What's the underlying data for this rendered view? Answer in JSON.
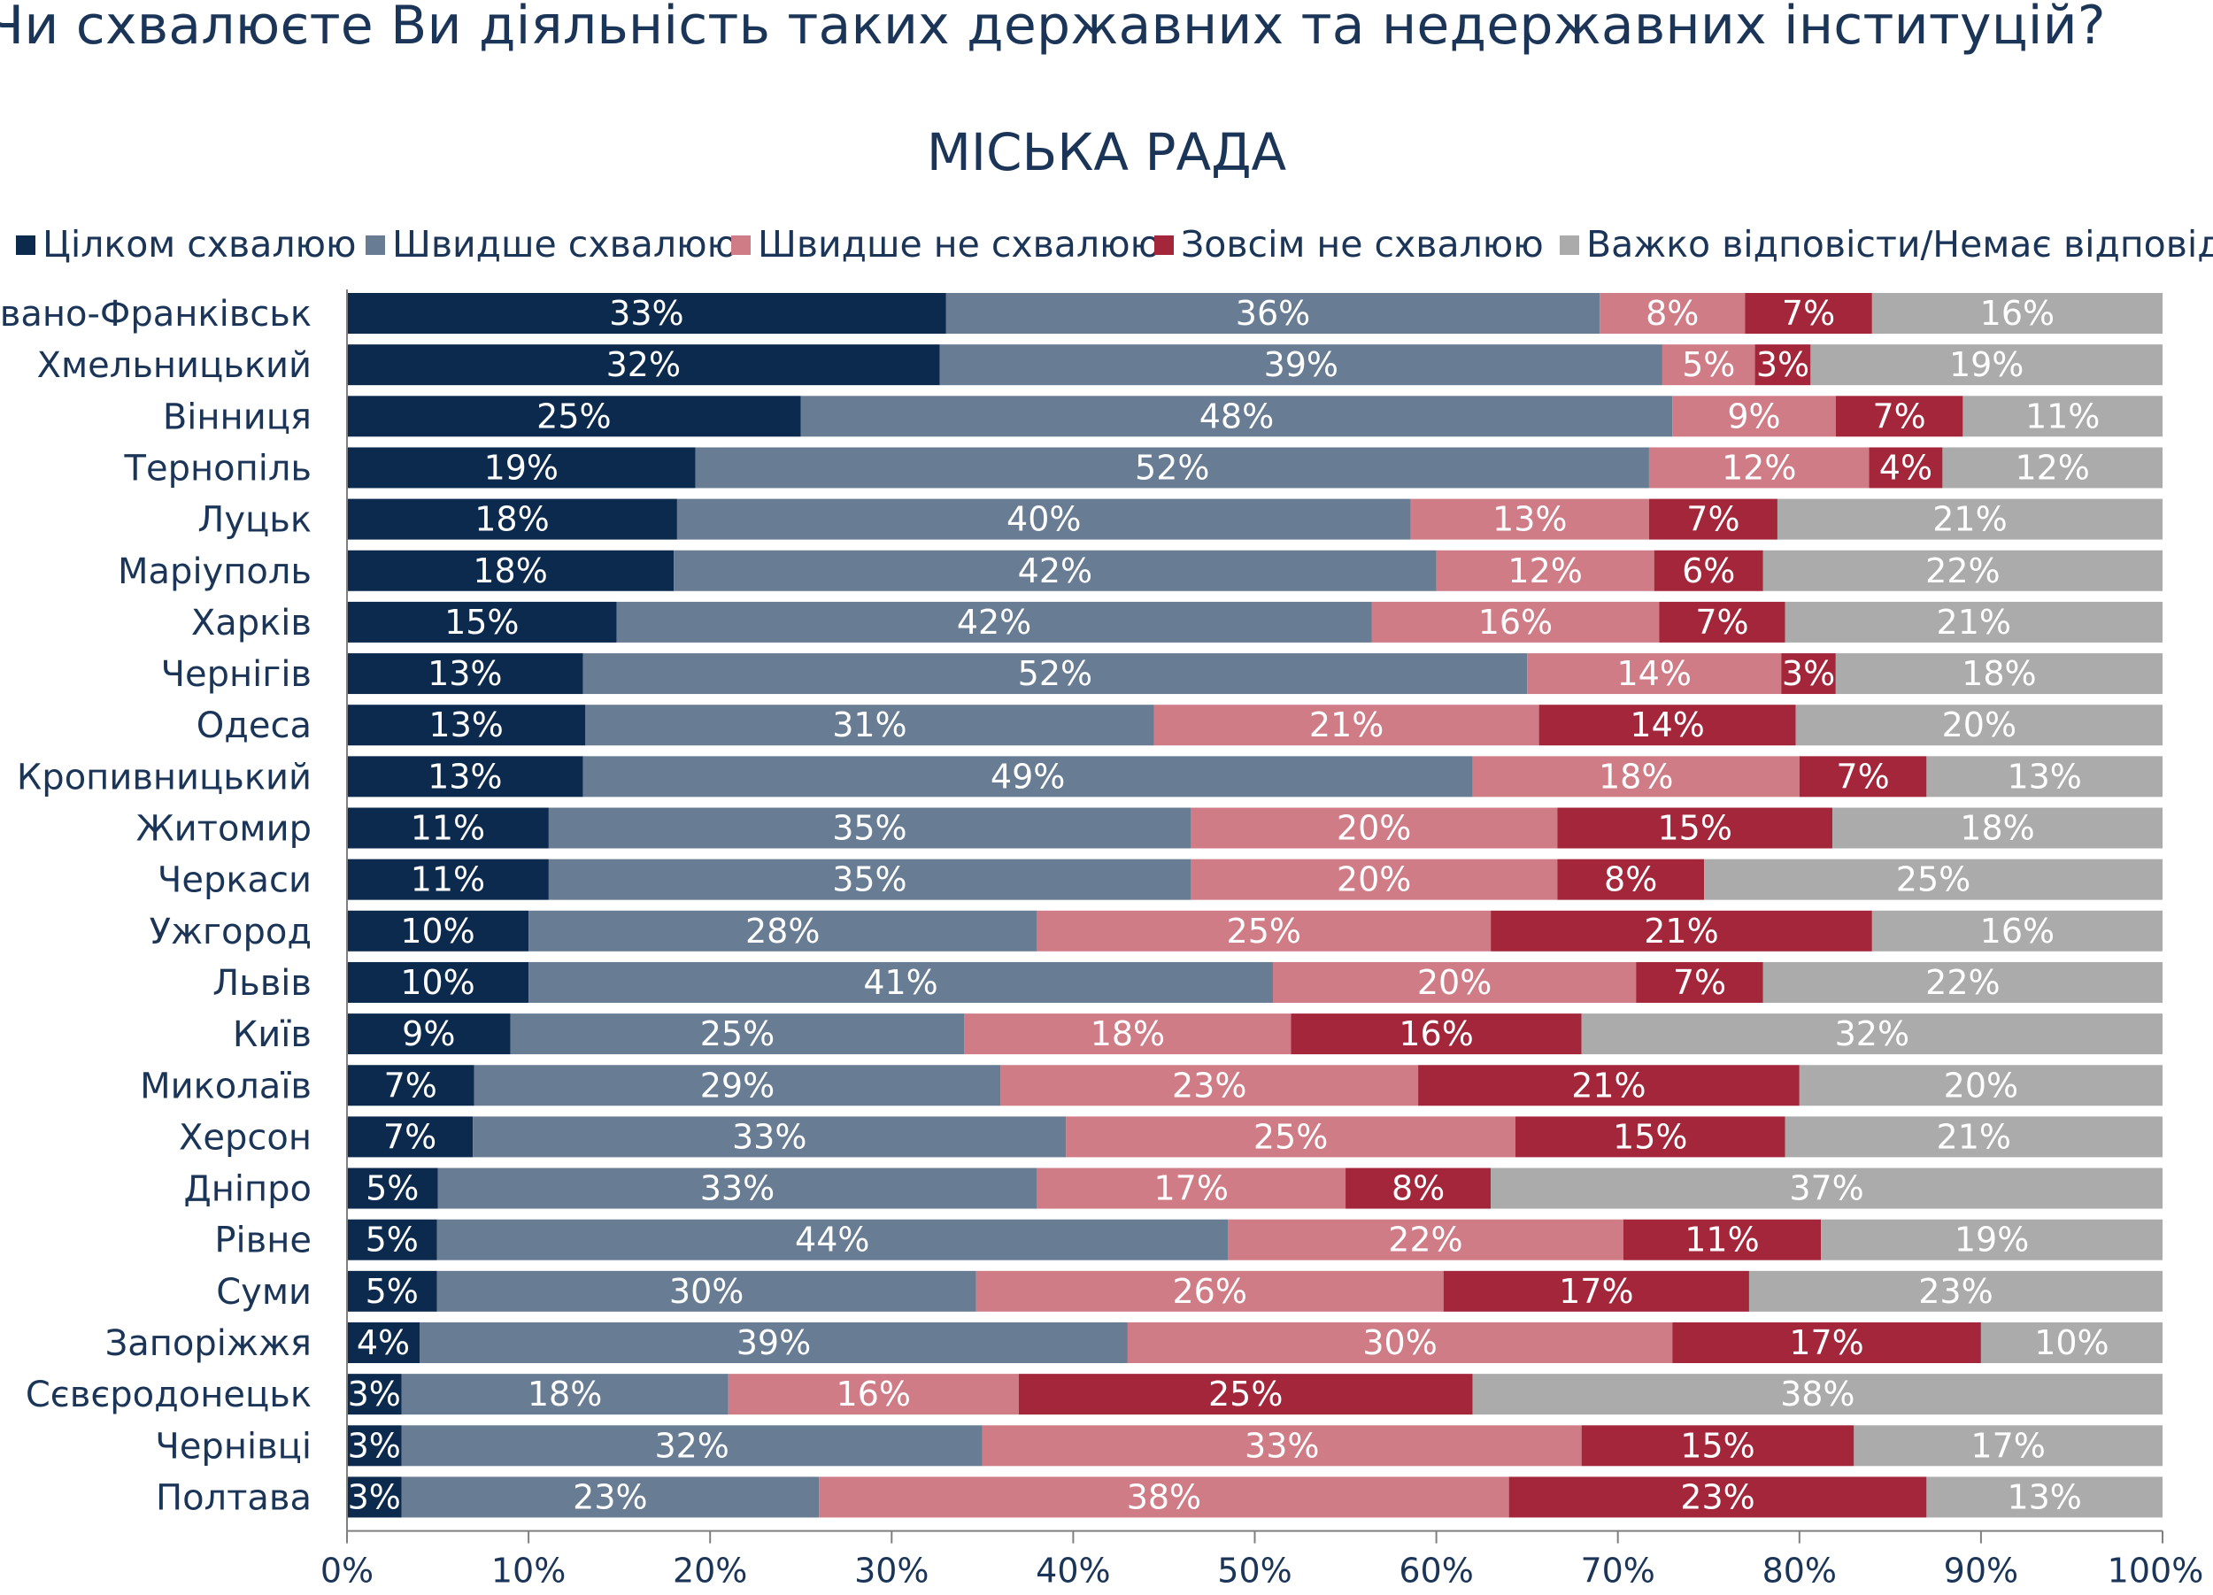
{
  "header": {
    "question": "Чи схвалюєте Ви діяльність таких державних та недержавних інституцій?"
  },
  "colors": {
    "fully_approve": "#0c2a4e",
    "rather_approve": "#687c93",
    "rather_disapprove": "#cf7c86",
    "fully_disapprove": "#a3263a",
    "hard_to_say": "#ababab"
  },
  "chart_data": {
    "type": "bar",
    "orientation": "horizontal",
    "stacked": true,
    "percent_stacked": true,
    "title": "МІСЬКА РАДА",
    "legend_position": "top",
    "xlim": [
      0,
      100
    ],
    "x_ticks": [
      "0%",
      "10%",
      "20%",
      "30%",
      "40%",
      "50%",
      "60%",
      "70%",
      "80%",
      "90%",
      "100%"
    ],
    "categories": [
      "Івано-Франківськ",
      "Хмельницький",
      "Вінниця",
      "Тернопіль",
      "Луцьк",
      "Маріуполь",
      "Харків",
      "Чернігів",
      "Одеса",
      "Кропивницький",
      "Житомир",
      "Черкаси",
      "Ужгород",
      "Львів",
      "Київ",
      "Миколаїв",
      "Херсон",
      "Дніпро",
      "Рівне",
      "Суми",
      "Запоріжжя",
      "Сєвєродонецьк",
      "Чернівці",
      "Полтава"
    ],
    "series": [
      {
        "name": "Цілком схвалюю",
        "color": "#0c2a4e",
        "values": [
          33,
          32,
          25,
          19,
          18,
          18,
          15,
          13,
          13,
          13,
          11,
          11,
          10,
          10,
          9,
          7,
          7,
          5,
          5,
          5,
          4,
          3,
          3,
          3
        ]
      },
      {
        "name": "Швидше схвалюю",
        "color": "#687c93",
        "values": [
          36,
          39,
          48,
          52,
          40,
          42,
          42,
          52,
          31,
          49,
          35,
          35,
          28,
          41,
          25,
          29,
          33,
          33,
          44,
          30,
          39,
          18,
          32,
          23
        ]
      },
      {
        "name": "Швидше не схвалюю",
        "color": "#cf7c86",
        "values": [
          8,
          5,
          9,
          12,
          13,
          12,
          16,
          14,
          21,
          18,
          20,
          20,
          25,
          20,
          18,
          23,
          25,
          17,
          22,
          26,
          30,
          16,
          33,
          38
        ]
      },
      {
        "name": "Зовсім не схвалюю",
        "color": "#a3263a",
        "values": [
          7,
          3,
          7,
          4,
          7,
          6,
          7,
          3,
          14,
          7,
          15,
          8,
          21,
          7,
          16,
          21,
          15,
          8,
          11,
          17,
          17,
          25,
          15,
          23
        ]
      },
      {
        "name": "Важко відповісти/Немає відповіді",
        "color": "#ababab",
        "values": [
          16,
          19,
          11,
          12,
          21,
          22,
          21,
          18,
          20,
          13,
          18,
          25,
          16,
          22,
          32,
          20,
          21,
          37,
          19,
          23,
          10,
          38,
          17,
          13
        ]
      }
    ]
  }
}
